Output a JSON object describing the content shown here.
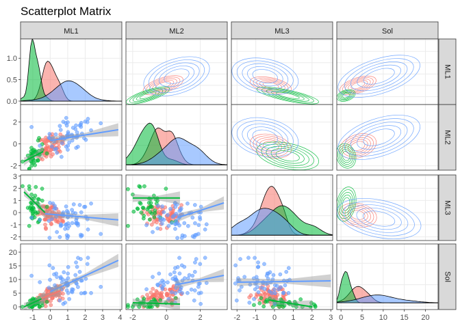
{
  "title": "Scatterplot Matrix",
  "variables": [
    "ML1",
    "ML2",
    "ML3",
    "Sol"
  ],
  "colors": {
    "group_a": "#F8766D",
    "group_b": "#00BA38",
    "group_c": "#619CFF",
    "strip_fill": "#D9D9D9",
    "grid": "#EBEBEB",
    "smooth_band": "#999999"
  },
  "chart_data": {
    "type": "scatter-matrix",
    "title": "Scatterplot Matrix",
    "facet_labels_top": [
      "ML1",
      "ML2",
      "ML3",
      "Sol"
    ],
    "facet_labels_right": [
      "ML1",
      "ML2",
      "ML3",
      "Sol"
    ],
    "axes": {
      "ML1": {
        "range": [
          -1.7,
          4.1
        ],
        "ticks": [
          -1,
          0,
          1,
          2,
          3,
          4
        ]
      },
      "ML2": {
        "range": [
          -2.4,
          3.6
        ],
        "ticks": [
          -2,
          0,
          2
        ]
      },
      "ML3": {
        "range": [
          -2.3,
          3.1
        ],
        "ticks": [
          -2,
          -1,
          0,
          1,
          2,
          3
        ]
      },
      "Sol": {
        "range": [
          -1,
          23
        ],
        "ticks": [
          0,
          5,
          10,
          15,
          20
        ]
      }
    },
    "diagonal_density_ticks": {
      "values": [
        0.0,
        0.5,
        1.0
      ],
      "labels": [
        "0.0",
        "0.5",
        "1.0"
      ]
    },
    "left_axis_ticks": {
      "ML1": {
        "values": [
          0.0,
          0.5,
          1.0
        ],
        "labels": [
          "0.0",
          "0.5",
          "1.0"
        ]
      },
      "ML2": {
        "values": [
          -2,
          0,
          2
        ],
        "labels": [
          "-2",
          "0",
          "2"
        ]
      },
      "ML3": {
        "values": [
          -2,
          -1,
          0,
          1,
          2,
          3
        ],
        "labels": [
          "-2",
          "-1",
          "0",
          "1",
          "2",
          "3"
        ]
      },
      "Sol": {
        "values": [
          0,
          5,
          10,
          15,
          20
        ],
        "labels": [
          "0",
          "5",
          "10",
          "15",
          "20"
        ]
      }
    },
    "bottom_axis_ticks": {
      "ML1": {
        "values": [
          -1,
          0,
          1,
          2,
          3,
          4
        ],
        "labels": [
          "-1",
          "0",
          "1",
          "2",
          "3",
          "4"
        ]
      },
      "ML2": {
        "values": [
          -2,
          0,
          2
        ],
        "labels": [
          "-2",
          "0",
          "2"
        ]
      },
      "ML3": {
        "values": [
          -2,
          -1,
          0,
          1,
          2,
          3
        ],
        "labels": [
          "-2",
          "-1",
          "0",
          "1",
          "2",
          "3"
        ]
      },
      "Sol": {
        "values": [
          0,
          5,
          10,
          15,
          20
        ],
        "labels": [
          "0",
          "5",
          "10",
          "15",
          "20"
        ]
      }
    },
    "groups": [
      {
        "color": "#F8766D",
        "center": {
          "ML1": 0.0,
          "ML2": -0.2,
          "ML3": -0.2,
          "Sol": 4.0
        },
        "sd": {
          "ML1": 0.35,
          "ML2": 0.55,
          "ML3": 0.5,
          "Sol": 2.0
        }
      },
      {
        "color": "#00BA38",
        "center": {
          "ML1": -0.9,
          "ML2": -1.1,
          "ML3": 0.7,
          "Sol": 1.2
        },
        "sd": {
          "ML1": 0.25,
          "ML2": 0.6,
          "ML3": 0.75,
          "Sol": 1.0
        }
      },
      {
        "color": "#619CFF",
        "center": {
          "ML1": 0.8,
          "ML2": 0.6,
          "ML3": -0.5,
          "Sol": 9.0
        },
        "sd": {
          "ML1": 0.8,
          "ML2": 0.9,
          "ML3": 0.8,
          "Sol": 4.5
        }
      }
    ],
    "smooth_lines": [
      {
        "row": "ML2",
        "col": "ML1",
        "color": "#619CFF",
        "x": [
          0.0,
          3.9
        ],
        "y": [
          0.3,
          1.3
        ]
      },
      {
        "row": "ML2",
        "col": "ML1",
        "color": "#00BA38",
        "x": [
          -1.5,
          -0.4
        ],
        "y": [
          -1.6,
          -0.7
        ]
      },
      {
        "row": "ML3",
        "col": "ML1",
        "color": "#619CFF",
        "x": [
          -0.3,
          3.9
        ],
        "y": [
          -0.1,
          -0.6
        ]
      },
      {
        "row": "ML3",
        "col": "ML1",
        "color": "#00BA38",
        "x": [
          -1.5,
          -0.3
        ],
        "y": [
          1.7,
          0.0
        ]
      },
      {
        "row": "ML3",
        "col": "ML2",
        "color": "#619CFF",
        "x": [
          0.7,
          3.4
        ],
        "y": [
          -0.4,
          0.8
        ]
      },
      {
        "row": "ML3",
        "col": "ML2",
        "color": "#00BA38",
        "x": [
          -2.0,
          0.8
        ],
        "y": [
          1.2,
          1.2
        ]
      },
      {
        "row": "Sol",
        "col": "ML1",
        "color": "#619CFF",
        "x": [
          0.0,
          3.9
        ],
        "y": [
          5.5,
          17.0
        ]
      },
      {
        "row": "Sol",
        "col": "ML1",
        "color": "#00BA38",
        "x": [
          -1.5,
          -0.3
        ],
        "y": [
          0.0,
          3.5
        ]
      },
      {
        "row": "Sol",
        "col": "ML1",
        "color": "#F8766D",
        "x": [
          -0.5,
          0.6
        ],
        "y": [
          3.0,
          6.0
        ]
      },
      {
        "row": "Sol",
        "col": "ML2",
        "color": "#619CFF",
        "x": [
          0.5,
          3.4
        ],
        "y": [
          8.0,
          11.5
        ]
      },
      {
        "row": "Sol",
        "col": "ML2",
        "color": "#00BA38",
        "x": [
          -2.0,
          0.8
        ],
        "y": [
          1.5,
          1.0
        ]
      },
      {
        "row": "Sol",
        "col": "ML3",
        "color": "#619CFF",
        "x": [
          -2.0,
          3.0
        ],
        "y": [
          9.0,
          9.5
        ]
      },
      {
        "row": "Sol",
        "col": "ML3",
        "color": "#00BA38",
        "x": [
          -0.3,
          2.0
        ],
        "y": [
          2.5,
          0.0
        ]
      }
    ]
  }
}
